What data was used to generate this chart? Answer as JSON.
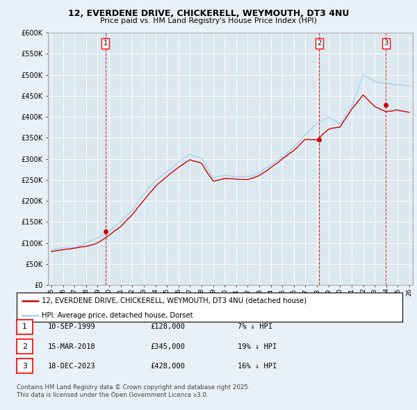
{
  "title_line1": "12, EVERDENE DRIVE, CHICKERELL, WEYMOUTH, DT3 4NU",
  "title_line2": "Price paid vs. HM Land Registry's House Price Index (HPI)",
  "ylabel_ticks": [
    "£0",
    "£50K",
    "£100K",
    "£150K",
    "£200K",
    "£250K",
    "£300K",
    "£350K",
    "£400K",
    "£450K",
    "£500K",
    "£550K",
    "£600K"
  ],
  "ytick_values": [
    0,
    50000,
    100000,
    150000,
    200000,
    250000,
    300000,
    350000,
    400000,
    450000,
    500000,
    550000,
    600000
  ],
  "xmin": 1994.7,
  "xmax": 2026.3,
  "ymin": 0,
  "ymax": 600000,
  "hpi_color": "#a8d0e8",
  "sale_color": "#cc0000",
  "background_color": "#e8f0f8",
  "plot_bg_color": "#dce8f0",
  "grid_color": "#ffffff",
  "sale_points": [
    {
      "year": 1999.69,
      "price": 128000,
      "label": "1"
    },
    {
      "year": 2018.2,
      "price": 345000,
      "label": "2"
    },
    {
      "year": 2023.96,
      "price": 428000,
      "label": "3"
    }
  ],
  "legend_entries": [
    "12, EVERDENE DRIVE, CHICKERELL, WEYMOUTH, DT3 4NU (detached house)",
    "HPI: Average price, detached house, Dorset"
  ],
  "table_rows": [
    {
      "num": "1",
      "date": "10-SEP-1999",
      "price": "£128,000",
      "hpi": "7% ↓ HPI"
    },
    {
      "num": "2",
      "date": "15-MAR-2018",
      "price": "£345,000",
      "hpi": "19% ↓ HPI"
    },
    {
      "num": "3",
      "date": "18-DEC-2023",
      "price": "£428,000",
      "hpi": "16% ↓ HPI"
    }
  ],
  "footer": "Contains HM Land Registry data © Crown copyright and database right 2025.\nThis data is licensed under the Open Government Licence v3.0.",
  "hpi_knots_t": [
    1995,
    1996,
    1997,
    1998,
    1999,
    2000,
    2001,
    2002,
    2003,
    2004,
    2005,
    2006,
    2007,
    2008,
    2009,
    2010,
    2011,
    2012,
    2013,
    2014,
    2015,
    2016,
    2017,
    2018,
    2019,
    2020,
    2021,
    2022,
    2023,
    2024,
    2025,
    2026
  ],
  "hpi_knots_v": [
    83000,
    86000,
    90000,
    97000,
    107000,
    125000,
    148000,
    178000,
    215000,
    248000,
    272000,
    295000,
    315000,
    305000,
    260000,
    268000,
    268000,
    268000,
    278000,
    298000,
    318000,
    342000,
    370000,
    400000,
    415000,
    395000,
    435000,
    510000,
    495000,
    490000,
    485000,
    480000
  ],
  "sale_knots_t": [
    1995,
    1996,
    1997,
    1998,
    1999,
    2000,
    2001,
    2002,
    2003,
    2004,
    2005,
    2006,
    2007,
    2008,
    2009,
    2010,
    2011,
    2012,
    2013,
    2014,
    2015,
    2016,
    2017,
    2018,
    2019,
    2020,
    2021,
    2022,
    2023,
    2024,
    2025,
    2026
  ],
  "sale_knots_v": [
    80000,
    83000,
    87000,
    93000,
    101000,
    118000,
    140000,
    168000,
    202000,
    235000,
    258000,
    280000,
    298000,
    288000,
    246000,
    252000,
    252000,
    252000,
    262000,
    280000,
    300000,
    322000,
    348000,
    345000,
    370000,
    378000,
    420000,
    455000,
    428000,
    415000,
    420000,
    415000
  ]
}
